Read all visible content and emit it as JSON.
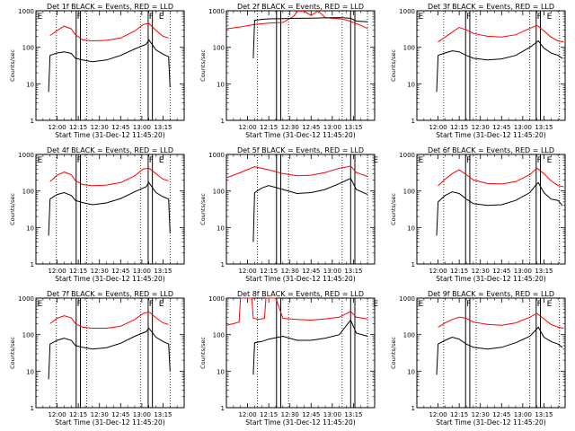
{
  "chart_data": {
    "type": "line",
    "layout": "3x3 grid",
    "xlabel": "Start Time (31-Dec-12 11:45:20)",
    "ylabel": "Counts/sec",
    "yscale": "log",
    "ylim": [
      1,
      1000
    ],
    "ytick_values": [
      1,
      10,
      100,
      1000
    ],
    "ytick_labels": [
      "1",
      "10",
      "100",
      "1000"
    ],
    "xtick_labels": [
      "12:00",
      "12:15",
      "12:30",
      "12:45",
      "13:00",
      "13:15"
    ],
    "xtick_minutes": [
      15,
      30,
      45,
      60,
      75,
      90
    ],
    "xlim_minutes": [
      0,
      105
    ],
    "time_origin": "11:45",
    "series_colors": {
      "events": "#000000",
      "lld": "#ff0000"
    },
    "panels": [
      {
        "title": "Det 1f BLACK = Events, RED = LLD",
        "solid_lines": [
          28.5,
          31.5,
          79.5,
          82.5
        ],
        "dotted_lines": [
          14.5,
          36,
          74,
          95
        ],
        "markers": [
          {
            "text": "E",
            "x": 1
          },
          {
            "text": "F",
            "x": 29
          },
          {
            "text": "F",
            "x": 80
          },
          {
            "text": "E",
            "x": 87
          }
        ],
        "lld": {
          "x": [
            10,
            15,
            20,
            25,
            28,
            33,
            40,
            50,
            60,
            70,
            76,
            80,
            85,
            90,
            94
          ],
          "y": [
            210,
            290,
            380,
            320,
            220,
            160,
            150,
            155,
            180,
            280,
            420,
            450,
            290,
            200,
            180
          ]
        },
        "events": {
          "x": [
            9,
            10,
            15,
            20,
            25,
            28,
            33,
            40,
            50,
            60,
            70,
            78,
            80,
            85,
            90,
            94,
            95
          ],
          "y": [
            6,
            60,
            70,
            75,
            68,
            50,
            45,
            40,
            45,
            60,
            90,
            120,
            160,
            85,
            65,
            55,
            8
          ]
        }
      },
      {
        "title": "Det 2f BLACK = Events, RED = LLD",
        "solid_lines": [
          35.5,
          38.5,
          88,
          91
        ],
        "dotted_lines": [
          22,
          44,
          82,
          100
        ],
        "markers": [],
        "lld": {
          "x": [
            0,
            10,
            20,
            30,
            40,
            48,
            50,
            55,
            60,
            65,
            70,
            75,
            80,
            85,
            90,
            95,
            100
          ],
          "y": [
            320,
            360,
            420,
            460,
            480,
            720,
            980,
            980,
            740,
            1000,
            650,
            620,
            600,
            560,
            480,
            400,
            330
          ]
        },
        "events": {
          "x": [
            19,
            20,
            25,
            30,
            40,
            50,
            60,
            70,
            80,
            88,
            92,
            100
          ],
          "y": [
            50,
            550,
            580,
            600,
            610,
            620,
            630,
            640,
            650,
            620,
            520,
            500
          ]
        }
      },
      {
        "title": "Det 3f BLACK = Events, RED = LLD",
        "solid_lines": [
          34.5,
          37.5,
          84.5,
          87.5
        ],
        "dotted_lines": [
          19,
          42,
          80,
          101
        ],
        "markers": [
          {
            "text": "E",
            "x": 1
          },
          {
            "text": "F",
            "x": 35
          },
          {
            "text": "F",
            "x": 85
          },
          {
            "text": "E",
            "x": 92
          }
        ],
        "lld": {
          "x": [
            15,
            20,
            25,
            30,
            35,
            40,
            50,
            60,
            70,
            80,
            85,
            90,
            95,
            100,
            104
          ],
          "y": [
            140,
            190,
            260,
            350,
            300,
            240,
            200,
            190,
            220,
            330,
            400,
            280,
            190,
            150,
            140
          ]
        },
        "events": {
          "x": [
            14,
            15,
            20,
            25,
            30,
            35,
            40,
            50,
            60,
            70,
            80,
            84,
            86,
            90,
            95,
            100,
            103
          ],
          "y": [
            6,
            60,
            70,
            80,
            75,
            60,
            50,
            45,
            48,
            60,
            100,
            130,
            150,
            95,
            70,
            60,
            50
          ]
        }
      },
      {
        "title": "Det 4f BLACK = Events, RED = LLD",
        "solid_lines": [
          28.5,
          31.5,
          79.5,
          82.5
        ],
        "dotted_lines": [
          14.5,
          36,
          74,
          95
        ],
        "markers": [
          {
            "text": "E",
            "x": 1
          },
          {
            "text": "F",
            "x": 29
          },
          {
            "text": "F",
            "x": 80
          },
          {
            "text": "E",
            "x": 87
          }
        ],
        "lld": {
          "x": [
            10,
            15,
            20,
            25,
            28,
            33,
            40,
            50,
            60,
            70,
            76,
            80,
            85,
            90,
            94
          ],
          "y": [
            180,
            270,
            330,
            280,
            190,
            150,
            140,
            145,
            170,
            260,
            400,
            420,
            300,
            210,
            190
          ]
        },
        "events": {
          "x": [
            9,
            10,
            15,
            20,
            25,
            28,
            33,
            40,
            50,
            60,
            70,
            78,
            80,
            85,
            90,
            94,
            95
          ],
          "y": [
            6,
            60,
            80,
            90,
            75,
            55,
            48,
            42,
            47,
            62,
            95,
            130,
            170,
            90,
            70,
            60,
            7
          ]
        }
      },
      {
        "title": "Det 5f BLACK = Events, RED = LLD",
        "solid_lines": [
          35.5,
          38.5,
          88,
          91
        ],
        "dotted_lines": [
          22,
          44,
          82,
          100
        ],
        "markers": [
          {
            "text": "E",
            "x": 104
          }
        ],
        "lld": {
          "x": [
            0,
            10,
            20,
            30,
            40,
            50,
            60,
            70,
            80,
            88,
            92,
            100
          ],
          "y": [
            230,
            320,
            460,
            380,
            300,
            260,
            270,
            320,
            420,
            480,
            320,
            250
          ]
        },
        "events": {
          "x": [
            19,
            20,
            25,
            30,
            40,
            50,
            60,
            70,
            80,
            88,
            92,
            100
          ],
          "y": [
            4,
            90,
            120,
            140,
            110,
            85,
            90,
            110,
            160,
            220,
            110,
            80
          ]
        }
      },
      {
        "title": "Det 6f BLACK = Events, RED = LLD",
        "solid_lines": [
          34.5,
          37.5,
          84.5,
          87.5
        ],
        "dotted_lines": [
          19,
          42,
          80,
          101
        ],
        "markers": [
          {
            "text": "E",
            "x": 1
          },
          {
            "text": "F",
            "x": 35
          },
          {
            "text": "F",
            "x": 85
          },
          {
            "text": "E",
            "x": 92
          }
        ],
        "lld": {
          "x": [
            15,
            20,
            25,
            30,
            35,
            40,
            50,
            60,
            70,
            80,
            85,
            90,
            95,
            100,
            104
          ],
          "y": [
            140,
            210,
            300,
            380,
            280,
            200,
            160,
            155,
            180,
            280,
            420,
            300,
            190,
            140,
            130
          ]
        },
        "events": {
          "x": [
            14,
            15,
            20,
            25,
            30,
            35,
            40,
            50,
            60,
            70,
            80,
            84,
            86,
            90,
            95,
            100,
            103
          ],
          "y": [
            6,
            50,
            75,
            95,
            85,
            60,
            45,
            40,
            42,
            55,
            90,
            140,
            170,
            90,
            60,
            55,
            40
          ]
        }
      },
      {
        "title": "Det 7f BLACK = Events, RED = LLD",
        "solid_lines": [
          28.5,
          31.5,
          79.5,
          82.5
        ],
        "dotted_lines": [
          14.5,
          36,
          74,
          95
        ],
        "markers": [
          {
            "text": "E",
            "x": 1
          },
          {
            "text": "F",
            "x": 29
          },
          {
            "text": "F",
            "x": 80
          },
          {
            "text": "E",
            "x": 87
          }
        ],
        "lld": {
          "x": [
            10,
            15,
            20,
            25,
            28,
            33,
            40,
            50,
            60,
            70,
            76,
            80,
            85,
            90,
            94
          ],
          "y": [
            200,
            280,
            330,
            290,
            200,
            160,
            150,
            150,
            170,
            260,
            380,
            420,
            290,
            210,
            190
          ]
        },
        "events": {
          "x": [
            9,
            10,
            15,
            20,
            25,
            28,
            33,
            40,
            50,
            60,
            70,
            78,
            80,
            85,
            90,
            94,
            95
          ],
          "y": [
            6,
            55,
            70,
            80,
            70,
            50,
            45,
            40,
            44,
            58,
            90,
            120,
            150,
            85,
            65,
            55,
            10
          ]
        }
      },
      {
        "title": "Det 8f BLACK = Events, RED = LLD",
        "solid_lines": [
          35.5,
          38.5,
          88,
          91
        ],
        "dotted_lines": [
          22,
          44,
          82,
          100
        ],
        "markers": [
          {
            "text": "E",
            "x": 104
          }
        ],
        "lld": {
          "x": [
            0,
            5,
            9,
            10,
            12,
            18,
            19,
            23,
            27,
            28,
            30,
            35,
            40,
            50,
            60,
            70,
            80,
            88,
            92,
            100
          ],
          "y": [
            180,
            200,
            220,
            1000,
            1000,
            1000,
            280,
            260,
            280,
            1000,
            1000,
            1000,
            280,
            260,
            250,
            270,
            300,
            430,
            300,
            270
          ]
        },
        "events": {
          "x": [
            19,
            20,
            25,
            30,
            40,
            50,
            60,
            70,
            80,
            88,
            92,
            100
          ],
          "y": [
            8,
            60,
            65,
            75,
            90,
            70,
            70,
            80,
            100,
            250,
            110,
            90
          ]
        }
      },
      {
        "title": "Det 9f BLACK = Events, RED = LLD",
        "solid_lines": [
          34.5,
          37.5,
          84.5,
          87.5
        ],
        "dotted_lines": [
          19,
          42,
          80,
          101
        ],
        "markers": [
          {
            "text": "E",
            "x": 1
          },
          {
            "text": "F",
            "x": 35
          },
          {
            "text": "F",
            "x": 85
          },
          {
            "text": "E",
            "x": 92
          }
        ],
        "lld": {
          "x": [
            15,
            20,
            25,
            30,
            35,
            40,
            50,
            60,
            70,
            80,
            85,
            90,
            95,
            100,
            104
          ],
          "y": [
            160,
            210,
            260,
            300,
            280,
            220,
            190,
            180,
            210,
            300,
            380,
            270,
            190,
            160,
            150
          ]
        },
        "events": {
          "x": [
            14,
            15,
            20,
            25,
            30,
            35,
            40,
            50,
            60,
            70,
            80,
            84,
            86,
            90,
            95,
            100,
            103
          ],
          "y": [
            8,
            55,
            70,
            85,
            75,
            55,
            45,
            40,
            45,
            60,
            90,
            130,
            160,
            85,
            65,
            55,
            45
          ]
        }
      }
    ]
  }
}
